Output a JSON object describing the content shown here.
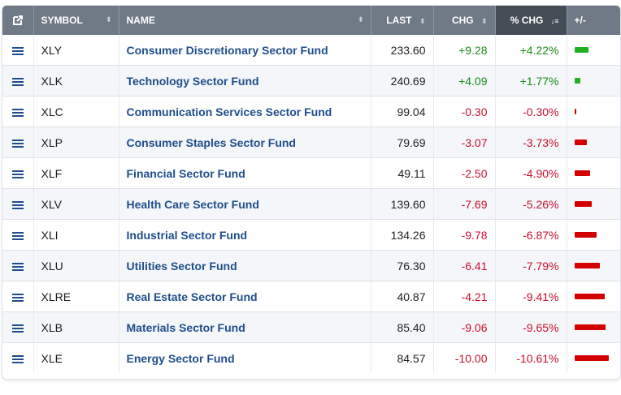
{
  "header": {
    "popout_icon": "popout-icon",
    "symbol": "SYMBOL",
    "name": "NAME",
    "last": "LAST",
    "chg": "CHG",
    "pct_chg": "% CHG",
    "plusminus": "+/-",
    "sort_icon": "⬍",
    "sorted_icon": "↓≡"
  },
  "colors": {
    "positive": "#1a8a1a",
    "negative": "#c8102e",
    "bar_positive": "#22b122",
    "bar_negative": "#d40000"
  },
  "rows": [
    {
      "symbol": "XLY",
      "name": "Consumer Discretionary Sector Fund",
      "last": "233.60",
      "chg": "+9.28",
      "pct": "+4.22%",
      "pct_value": 4.22
    },
    {
      "symbol": "XLK",
      "name": "Technology Sector Fund",
      "last": "240.69",
      "chg": "+4.09",
      "pct": "+1.77%",
      "pct_value": 1.77
    },
    {
      "symbol": "XLC",
      "name": "Communication Services Sector Fund",
      "last": "99.04",
      "chg": "-0.30",
      "pct": "-0.30%",
      "pct_value": -0.3
    },
    {
      "symbol": "XLP",
      "name": "Consumer Staples Sector Fund",
      "last": "79.69",
      "chg": "-3.07",
      "pct": "-3.73%",
      "pct_value": -3.73
    },
    {
      "symbol": "XLF",
      "name": "Financial Sector Fund",
      "last": "49.11",
      "chg": "-2.50",
      "pct": "-4.90%",
      "pct_value": -4.9
    },
    {
      "symbol": "XLV",
      "name": "Health Care Sector Fund",
      "last": "139.60",
      "chg": "-7.69",
      "pct": "-5.26%",
      "pct_value": -5.26
    },
    {
      "symbol": "XLI",
      "name": "Industrial Sector Fund",
      "last": "134.26",
      "chg": "-9.78",
      "pct": "-6.87%",
      "pct_value": -6.87
    },
    {
      "symbol": "XLU",
      "name": "Utilities Sector Fund",
      "last": "76.30",
      "chg": "-6.41",
      "pct": "-7.79%",
      "pct_value": -7.79
    },
    {
      "symbol": "XLRE",
      "name": "Real Estate Sector Fund",
      "last": "40.87",
      "chg": "-4.21",
      "pct": "-9.41%",
      "pct_value": -9.41
    },
    {
      "symbol": "XLB",
      "name": "Materials Sector Fund",
      "last": "85.40",
      "chg": "-9.06",
      "pct": "-9.65%",
      "pct_value": -9.65
    },
    {
      "symbol": "XLE",
      "name": "Energy Sector Fund",
      "last": "84.57",
      "chg": "-10.00",
      "pct": "-10.61%",
      "pct_value": -10.61
    }
  ]
}
